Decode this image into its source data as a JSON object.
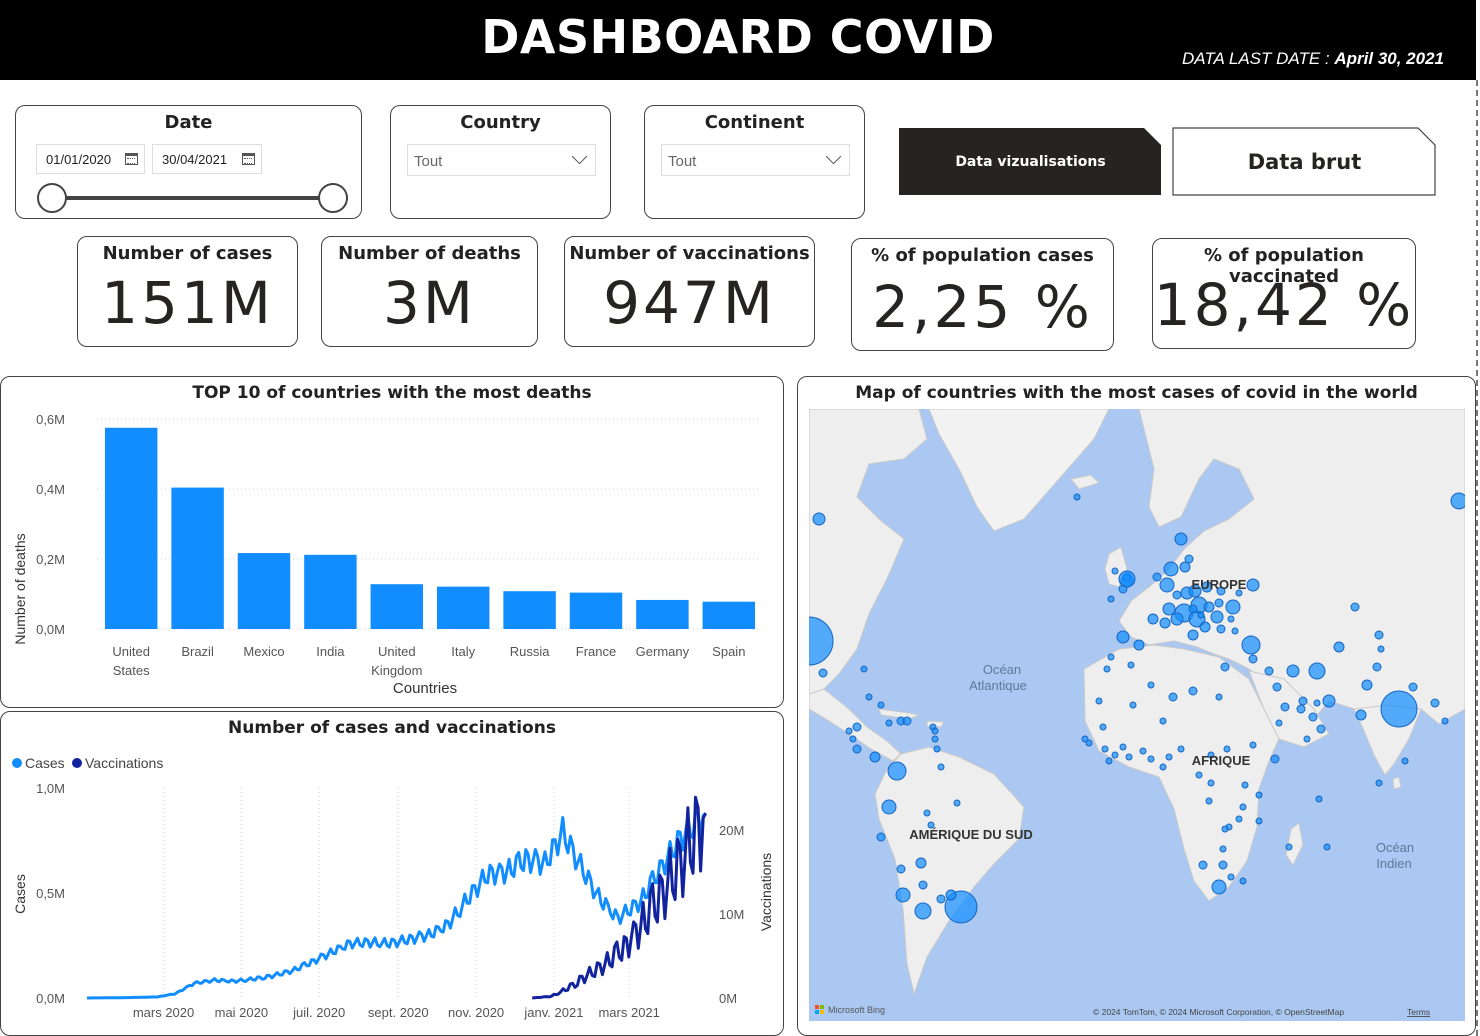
{
  "header": {
    "title": "DASHBOARD COVID",
    "last_date_label": "DATA LAST DATE :",
    "last_date_value": "April 30, 2021"
  },
  "filters": {
    "date": {
      "title": "Date",
      "from": "01/01/2020",
      "to": "30/04/2021"
    },
    "country": {
      "title": "Country",
      "selected": "Tout"
    },
    "continent": {
      "title": "Continent",
      "selected": "Tout"
    }
  },
  "nav": {
    "active_label": "Data vizualisations",
    "inactive_label": "Data brut"
  },
  "kpis": [
    {
      "label": "Number of cases",
      "value": "151M"
    },
    {
      "label": "Number of deaths",
      "value": "3M"
    },
    {
      "label": "Number of vaccinations",
      "value": "947M"
    },
    {
      "label": "% of population cases",
      "value": "2,25 %"
    },
    {
      "label": "% of population vaccinated",
      "value": "18,42 %"
    }
  ],
  "bar_chart": {
    "title": "TOP 10 of countries with the most deaths",
    "xlabel": "Countries",
    "ylabel": "Number of deaths"
  },
  "line_chart": {
    "title": "Number of cases and vaccinations",
    "ylabel_left": "Cases",
    "ylabel_right": "Vaccinations"
  },
  "map": {
    "title": "Map of countries with the most cases of covid in the world",
    "labels": {
      "europe": "EUROPE",
      "afrique": "AFRIQUE",
      "amerique_sud": "AMÉRIQUE DU SUD",
      "ocean_atlantique_1": "Océan",
      "ocean_atlantique_2": "Atlantique",
      "ocean_indien_1": "Océan",
      "ocean_indien_2": "Indien"
    },
    "bing": "Microsoft Bing",
    "copyright": "© 2024 TomTom, © 2024 Microsoft Corporation, © OpenStreetMap",
    "terms": "Terms"
  },
  "colors": {
    "bar": "#118DFF",
    "cases": "#118DFF",
    "vaccinations": "#12239E",
    "water": "#aac8f2",
    "land": "#eeeeee"
  },
  "chart_data": [
    {
      "type": "bar",
      "title": "TOP 10 of countries with the most deaths",
      "xlabel": "Countries",
      "ylabel": "Number of deaths",
      "categories": [
        "United States",
        "Brazil",
        "Mexico",
        "India",
        "United Kingdom",
        "Italy",
        "Russia",
        "France",
        "Germany",
        "Spain"
      ],
      "values": [
        575000,
        404000,
        217000,
        212000,
        128000,
        121000,
        108000,
        104000,
        83000,
        78000
      ],
      "ylim": [
        0,
        600000
      ],
      "yticks": [
        "0,0M",
        "0,2M",
        "0,4M",
        "0,6M"
      ],
      "grid": true
    },
    {
      "type": "line",
      "title": "Number of cases and vaccinations",
      "ylabel": "Cases",
      "ylabel_right": "Vaccinations",
      "legend": "top-left",
      "x_ticks": [
        "mars 2020",
        "mai 2020",
        "juil. 2020",
        "sept. 2020",
        "nov. 2020",
        "janv. 2021",
        "mars 2021"
      ],
      "yticks_left": [
        "0,0M",
        "0,5M",
        "1,0M"
      ],
      "yticks_right": [
        "0M",
        "10M",
        "20M"
      ],
      "ylim_left": [
        0,
        1000000
      ],
      "ylim_right": [
        0,
        25000000
      ],
      "series": [
        {
          "name": "Cases",
          "axis": "left",
          "points": [
            [
              "2020-01-01",
              0
            ],
            [
              "2020-02-01",
              2000
            ],
            [
              "2020-02-25",
              5000
            ],
            [
              "2020-03-10",
              20000
            ],
            [
              "2020-03-25",
              70000
            ],
            [
              "2020-04-10",
              85000
            ],
            [
              "2020-04-25",
              80000
            ],
            [
              "2020-05-10",
              90000
            ],
            [
              "2020-05-25",
              105000
            ],
            [
              "2020-06-10",
              130000
            ],
            [
              "2020-06-25",
              170000
            ],
            [
              "2020-07-10",
              215000
            ],
            [
              "2020-07-25",
              260000
            ],
            [
              "2020-08-10",
              265000
            ],
            [
              "2020-08-25",
              260000
            ],
            [
              "2020-09-10",
              280000
            ],
            [
              "2020-09-25",
              300000
            ],
            [
              "2020-10-10",
              350000
            ],
            [
              "2020-10-25",
              470000
            ],
            [
              "2020-11-10",
              590000
            ],
            [
              "2020-11-25",
              600000
            ],
            [
              "2020-12-10",
              660000
            ],
            [
              "2020-12-25",
              640000
            ],
            [
              "2021-01-08",
              790000
            ],
            [
              "2021-01-20",
              650000
            ],
            [
              "2021-02-05",
              480000
            ],
            [
              "2021-02-20",
              380000
            ],
            [
              "2021-03-10",
              460000
            ],
            [
              "2021-03-25",
              610000
            ],
            [
              "2021-04-10",
              760000
            ],
            [
              "2021-04-30",
              880000
            ]
          ]
        },
        {
          "name": "Vaccinations",
          "axis": "right",
          "points": [
            [
              "2020-12-15",
              0
            ],
            [
              "2020-12-30",
              200000
            ],
            [
              "2021-01-10",
              1000000
            ],
            [
              "2021-01-25",
              2500000
            ],
            [
              "2021-02-10",
              4000000
            ],
            [
              "2021-02-25",
              6000000
            ],
            [
              "2021-03-10",
              8500000
            ],
            [
              "2021-03-25",
              12000000
            ],
            [
              "2021-04-10",
              16000000
            ],
            [
              "2021-04-20",
              19000000
            ],
            [
              "2021-04-30",
              22000000
            ]
          ]
        }
      ]
    }
  ]
}
